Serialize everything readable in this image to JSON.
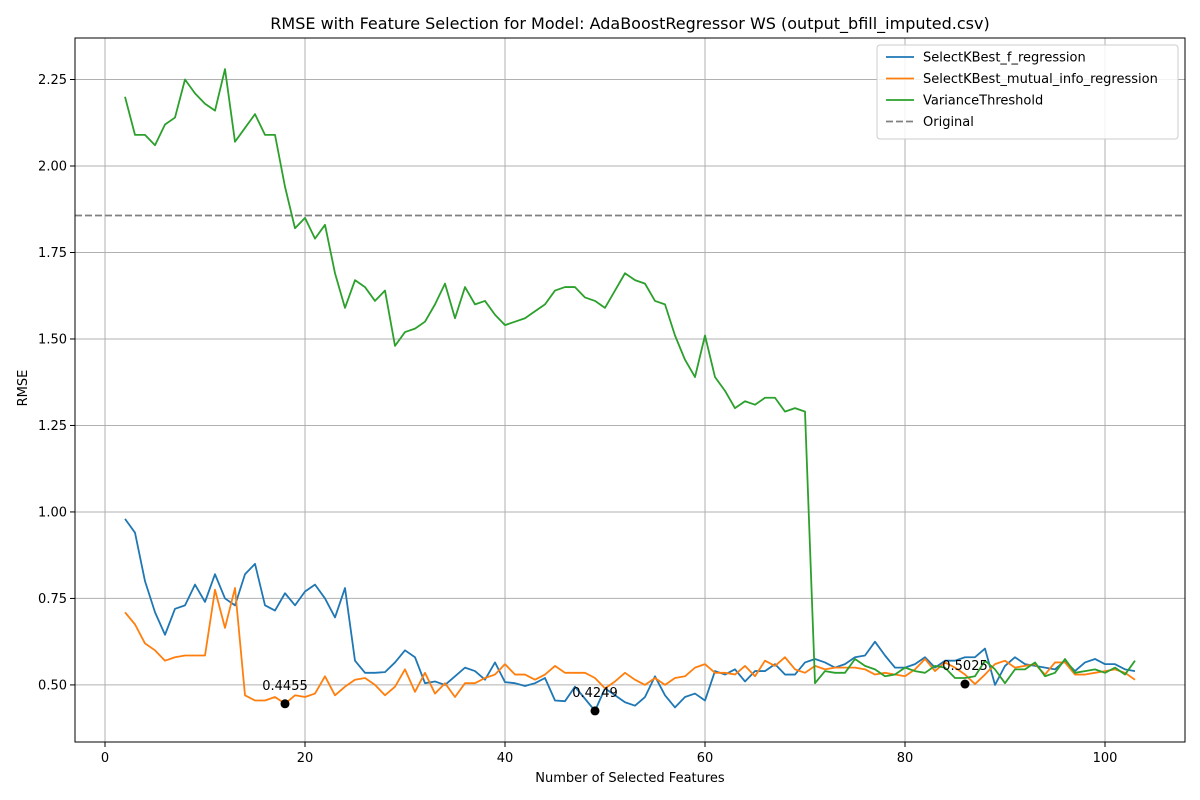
{
  "chart_data": {
    "type": "line",
    "title": "RMSE with Feature Selection for Model: AdaBoostRegressor WS (output_bfill_imputed.csv)",
    "xlabel": "Number of Selected Features",
    "ylabel": "RMSE",
    "xlim": [
      -3,
      108
    ],
    "ylim": [
      0.335,
      2.37
    ],
    "xticks": [
      0,
      20,
      40,
      60,
      80,
      100
    ],
    "yticks": [
      0.5,
      0.75,
      1.0,
      1.25,
      1.5,
      1.75,
      2.0,
      2.25
    ],
    "xtick_labels": [
      "0",
      "20",
      "40",
      "60",
      "80",
      "100"
    ],
    "ytick_labels": [
      "0.50",
      "0.75",
      "1.00",
      "1.25",
      "1.50",
      "1.75",
      "2.00",
      "2.25"
    ],
    "grid": true,
    "legend_position": "top-right",
    "x": [
      2,
      3,
      4,
      5,
      6,
      7,
      8,
      9,
      10,
      11,
      12,
      13,
      14,
      15,
      16,
      17,
      18,
      19,
      20,
      21,
      22,
      23,
      24,
      25,
      26,
      27,
      28,
      29,
      30,
      31,
      32,
      33,
      34,
      35,
      36,
      37,
      38,
      39,
      40,
      41,
      42,
      43,
      44,
      45,
      46,
      47,
      48,
      49,
      50,
      51,
      52,
      53,
      54,
      55,
      56,
      57,
      58,
      59,
      60,
      61,
      62,
      63,
      64,
      65,
      66,
      67,
      68,
      69,
      70,
      71,
      72,
      73,
      74,
      75,
      76,
      77,
      78,
      79,
      80,
      81,
      82,
      83,
      84,
      85,
      86,
      87,
      88,
      89,
      90,
      91,
      92,
      93,
      94,
      95,
      96,
      97,
      98,
      99,
      100,
      101,
      102,
      103
    ],
    "series": [
      {
        "name": "SelectKBest_f_regression",
        "color": "#1f77b4",
        "style": "solid",
        "values": [
          0.98,
          0.94,
          0.8,
          0.71,
          0.645,
          0.72,
          0.73,
          0.79,
          0.74,
          0.82,
          0.75,
          0.73,
          0.82,
          0.85,
          0.73,
          0.715,
          0.765,
          0.73,
          0.77,
          0.79,
          0.75,
          0.695,
          0.78,
          0.57,
          0.535,
          0.535,
          0.537,
          0.565,
          0.6,
          0.58,
          0.505,
          0.51,
          0.5,
          0.525,
          0.55,
          0.54,
          0.515,
          0.565,
          0.508,
          0.505,
          0.497,
          0.505,
          0.52,
          0.455,
          0.453,
          0.495,
          0.46,
          0.4249,
          0.49,
          0.47,
          0.45,
          0.44,
          0.465,
          0.525,
          0.47,
          0.435,
          0.465,
          0.475,
          0.455,
          0.54,
          0.53,
          0.545,
          0.51,
          0.54,
          0.54,
          0.56,
          0.53,
          0.53,
          0.565,
          0.575,
          0.565,
          0.55,
          0.56,
          0.58,
          0.585,
          0.625,
          0.585,
          0.55,
          0.55,
          0.56,
          0.58,
          0.55,
          0.57,
          0.57,
          0.58,
          0.58,
          0.605,
          0.5,
          0.555,
          0.58,
          0.56,
          0.555,
          0.55,
          0.545,
          0.57,
          0.54,
          0.565,
          0.575,
          0.56,
          0.56,
          0.545,
          0.54
        ]
      },
      {
        "name": "SelectKBest_mutual_info_regression",
        "color": "#ff7f0e",
        "style": "solid",
        "values": [
          0.71,
          0.675,
          0.62,
          0.6,
          0.57,
          0.58,
          0.585,
          0.585,
          0.585,
          0.775,
          0.665,
          0.78,
          0.47,
          0.455,
          0.455,
          0.465,
          0.4455,
          0.47,
          0.465,
          0.475,
          0.525,
          0.47,
          0.495,
          0.515,
          0.52,
          0.5,
          0.47,
          0.495,
          0.545,
          0.48,
          0.535,
          0.475,
          0.505,
          0.465,
          0.505,
          0.505,
          0.52,
          0.53,
          0.56,
          0.53,
          0.53,
          0.515,
          0.53,
          0.555,
          0.535,
          0.535,
          0.535,
          0.52,
          0.49,
          0.51,
          0.535,
          0.515,
          0.5,
          0.52,
          0.5,
          0.52,
          0.525,
          0.55,
          0.56,
          0.535,
          0.535,
          0.53,
          0.555,
          0.525,
          0.57,
          0.555,
          0.58,
          0.545,
          0.535,
          0.555,
          0.545,
          0.55,
          0.55,
          0.55,
          0.545,
          0.53,
          0.535,
          0.53,
          0.525,
          0.545,
          0.575,
          0.54,
          0.565,
          0.55,
          0.53,
          0.5025,
          0.53,
          0.56,
          0.57,
          0.55,
          0.555,
          0.56,
          0.53,
          0.565,
          0.565,
          0.53,
          0.53,
          0.535,
          0.54,
          0.545,
          0.535,
          0.515
        ]
      },
      {
        "name": "VarianceThreshold",
        "color": "#2ca02c",
        "style": "solid",
        "values": [
          2.2,
          2.09,
          2.09,
          2.06,
          2.12,
          2.14,
          2.25,
          2.21,
          2.18,
          2.16,
          2.28,
          2.07,
          2.11,
          2.15,
          2.09,
          2.09,
          1.94,
          1.82,
          1.85,
          1.79,
          1.83,
          1.69,
          1.59,
          1.67,
          1.65,
          1.61,
          1.64,
          1.48,
          1.52,
          1.53,
          1.55,
          1.6,
          1.66,
          1.56,
          1.65,
          1.6,
          1.61,
          1.57,
          1.54,
          1.55,
          1.56,
          1.58,
          1.6,
          1.64,
          1.65,
          1.65,
          1.62,
          1.61,
          1.59,
          1.64,
          1.69,
          1.67,
          1.66,
          1.61,
          1.6,
          1.51,
          1.44,
          1.39,
          1.51,
          1.39,
          1.35,
          1.3,
          1.32,
          1.31,
          1.33,
          1.33,
          1.29,
          1.3,
          1.29,
          0.505,
          0.54,
          0.535,
          0.535,
          0.575,
          0.555,
          0.545,
          0.525,
          0.53,
          0.55,
          0.54,
          0.535,
          0.555,
          0.55,
          0.52,
          0.52,
          0.525,
          0.57,
          0.545,
          0.505,
          0.545,
          0.545,
          0.565,
          0.525,
          0.535,
          0.575,
          0.535,
          0.54,
          0.545,
          0.535,
          0.55,
          0.53,
          0.57
        ]
      }
    ],
    "reference_line": {
      "name": "Original",
      "value": 1.857,
      "color": "#808080",
      "style": "dashed"
    },
    "annotations": [
      {
        "x": 18,
        "y": 0.4455,
        "label": "0.4455"
      },
      {
        "x": 49,
        "y": 0.4249,
        "label": "0.4249"
      },
      {
        "x": 86,
        "y": 0.5025,
        "label": "0.5025"
      }
    ]
  }
}
